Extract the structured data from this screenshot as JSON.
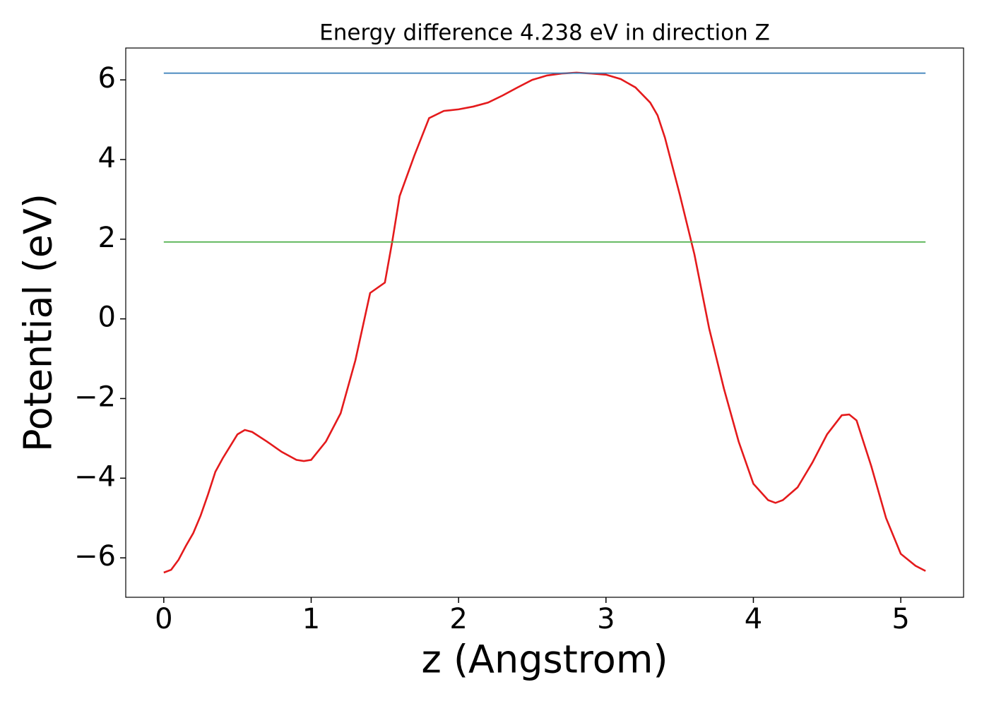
{
  "chart_data": {
    "type": "line",
    "title": "Energy difference 4.238 eV in direction Z",
    "xlabel": "z (Angstrom)",
    "ylabel": "Potential (eV)",
    "series": [
      {
        "color": "#e41a1c",
        "x": [
          0,
          0.05,
          0.1,
          0.15,
          0.2,
          0.25,
          0.3,
          0.35,
          0.4,
          0.45,
          0.5,
          0.55,
          0.6,
          0.7,
          0.8,
          0.9,
          0.95,
          1.0,
          1.1,
          1.2,
          1.3,
          1.4,
          1.5,
          1.55,
          1.6,
          1.7,
          1.8,
          1.9,
          2.0,
          2.1,
          2.2,
          2.3,
          2.4,
          2.5,
          2.6,
          2.7,
          2.8,
          2.9,
          3.0,
          3.1,
          3.2,
          3.3,
          3.35,
          3.4,
          3.5,
          3.6,
          3.7,
          3.8,
          3.9,
          4.0,
          4.1,
          4.15,
          4.2,
          4.3,
          4.4,
          4.5,
          4.6,
          4.65,
          4.7,
          4.8,
          4.9,
          5.0,
          5.1,
          5.168
        ],
        "values": [
          -6.37,
          -6.3,
          -6.05,
          -5.7,
          -5.38,
          -4.94,
          -4.41,
          -3.84,
          -3.5,
          -3.2,
          -2.9,
          -2.79,
          -2.84,
          -3.08,
          -3.34,
          -3.54,
          -3.57,
          -3.54,
          -3.08,
          -2.37,
          -1.04,
          0.65,
          0.91,
          1.94,
          3.08,
          4.1,
          5.04,
          5.22,
          5.26,
          5.33,
          5.43,
          5.61,
          5.81,
          6.0,
          6.11,
          6.16,
          6.18,
          6.16,
          6.13,
          6.02,
          5.81,
          5.43,
          5.11,
          4.55,
          3.13,
          1.62,
          -0.24,
          -1.75,
          -3.08,
          -4.14,
          -4.55,
          -4.62,
          -4.55,
          -4.23,
          -3.61,
          -2.9,
          -2.42,
          -2.4,
          -2.55,
          -3.7,
          -5.0,
          -5.9,
          -6.2,
          -6.33
        ]
      },
      {
        "color": "#377eb8",
        "x": [
          0,
          5.168
        ],
        "values": [
          6.168,
          6.168
        ]
      },
      {
        "color": "#4daf4a",
        "x": [
          0,
          5.168
        ],
        "values": [
          1.93,
          1.93
        ]
      }
    ],
    "xlim": [
      -0.258,
      5.426
    ],
    "ylim": [
      -6.99,
      6.8
    ],
    "xticks": [
      0,
      1,
      2,
      3,
      4,
      5
    ],
    "yticks": [
      {
        "value": -6,
        "label": "−6"
      },
      {
        "value": -4,
        "label": "−4"
      },
      {
        "value": -2,
        "label": "−2"
      },
      0,
      2,
      4,
      6
    ],
    "grid": false
  }
}
